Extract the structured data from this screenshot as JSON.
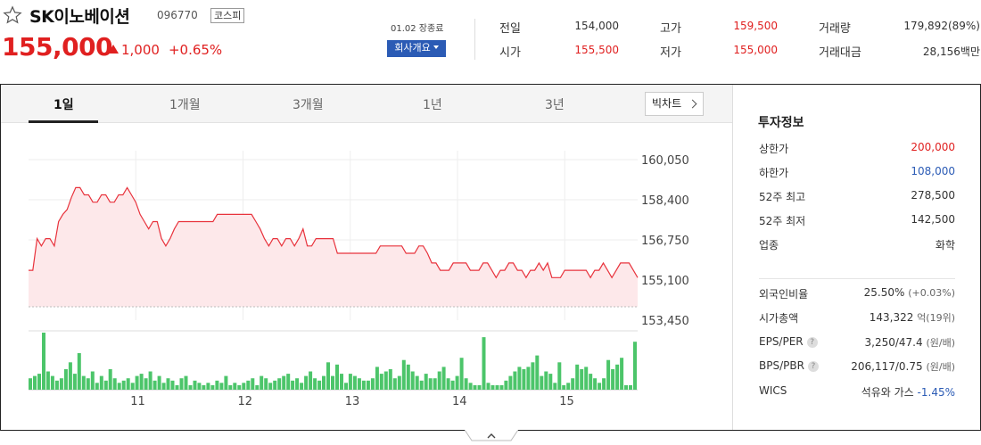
{
  "header": {
    "name": "SK이노베이션",
    "code": "096770",
    "market": "코스피",
    "price": "155,000",
    "change": "1,000",
    "change_pct": "+0.65%",
    "status": "01.02 장종료",
    "company_button": "회사개요"
  },
  "quotes": [
    {
      "label": "전일",
      "value": "154,000",
      "color": "#333333"
    },
    {
      "label": "시가",
      "value": "155,500",
      "color": "#e02020"
    },
    {
      "label": "고가",
      "value": "159,500",
      "color": "#e02020"
    },
    {
      "label": "저가",
      "value": "155,000",
      "color": "#e02020"
    },
    {
      "label": "거래량",
      "value": "179,892(89%)",
      "color": "#333333"
    },
    {
      "label": "거래대금",
      "value": "28,156백만",
      "color": "#333333"
    }
  ],
  "tabs": [
    "1일",
    "1개월",
    "3개월",
    "1년",
    "3년"
  ],
  "active_tab": "1일",
  "bigchart_label": "빅차트",
  "colors": {
    "up": "#e02020",
    "down": "#2b5bb5",
    "volume": "#4cc56a",
    "line": "#e8323c",
    "fill": "#fde8ea"
  },
  "chart_data": {
    "type": "line",
    "y_ticks": [
      "160,050",
      "158,400",
      "156,750",
      "155,100",
      "153,450"
    ],
    "ylim": [
      153450,
      160050
    ],
    "x_ticks": [
      "11",
      "12",
      "13",
      "14",
      "15"
    ],
    "base_price": 154000,
    "price_values": [
      155500,
      155500,
      156800,
      156500,
      156800,
      156800,
      156500,
      157500,
      157800,
      158000,
      158500,
      158900,
      158900,
      158600,
      158600,
      158300,
      158300,
      158600,
      158600,
      158300,
      158300,
      158600,
      158600,
      158900,
      158600,
      158300,
      157800,
      157500,
      157200,
      157500,
      157500,
      156800,
      156500,
      156800,
      157200,
      157500,
      157500,
      157500,
      157500,
      157500,
      157500,
      157500,
      157500,
      157500,
      157800,
      157800,
      157800,
      157800,
      157800,
      157800,
      157800,
      157800,
      157800,
      157500,
      157200,
      156800,
      156500,
      156800,
      156800,
      156500,
      156800,
      156800,
      156500,
      156800,
      157200,
      156500,
      156500,
      156800,
      156800,
      156800,
      156800,
      156800,
      156200,
      156200,
      156200,
      156200,
      156200,
      156200,
      156200,
      156200,
      156200,
      156200,
      156500,
      156500,
      156500,
      156500,
      156500,
      156500,
      156200,
      156200,
      156200,
      156500,
      156500,
      156200,
      155800,
      155800,
      155500,
      155500,
      155500,
      155800,
      155800,
      155800,
      155800,
      155500,
      155500,
      155500,
      155800,
      155800,
      155500,
      155200,
      155500,
      155500,
      155800,
      155800,
      155500,
      155500,
      155200,
      155500,
      155500,
      155800,
      155500,
      155800,
      155200,
      155200,
      155200,
      155500,
      155500,
      155500,
      155500,
      155500,
      155500,
      155200,
      155500,
      155500,
      155800,
      155500,
      155200,
      155500,
      155800,
      155800,
      155800,
      155500,
      155200
    ],
    "volume_values": [
      5,
      6,
      7,
      25,
      8,
      6,
      4,
      5,
      9,
      12,
      7,
      16,
      6,
      5,
      8,
      3,
      6,
      4,
      9,
      5,
      3,
      4,
      5,
      3,
      6,
      7,
      5,
      8,
      4,
      6,
      3,
      5,
      4,
      2,
      5,
      6,
      2,
      4,
      3,
      2,
      3,
      2,
      4,
      3,
      6,
      2,
      3,
      2,
      3,
      4,
      5,
      2,
      6,
      5,
      3,
      4,
      5,
      6,
      7,
      4,
      5,
      3,
      6,
      8,
      5,
      4,
      6,
      12,
      6,
      11,
      7,
      3,
      7,
      6,
      5,
      4,
      4,
      5,
      10,
      7,
      8,
      9,
      5,
      6,
      13,
      11,
      8,
      6,
      4,
      7,
      5,
      5,
      8,
      10,
      5,
      4,
      6,
      14,
      5,
      3,
      2,
      2,
      23,
      3,
      2,
      2,
      2,
      4,
      6,
      8,
      10,
      9,
      10,
      12,
      15,
      6,
      8,
      7,
      3,
      12,
      2,
      3,
      5,
      11,
      9,
      10,
      7,
      5,
      3,
      5,
      13,
      9,
      11,
      14,
      2,
      2,
      21
    ]
  },
  "info": {
    "title": "투자정보",
    "rows1": [
      {
        "label": "상한가",
        "value": "200,000",
        "color": "#e02020"
      },
      {
        "label": "하한가",
        "value": "108,000",
        "color": "#2b5bb5"
      },
      {
        "label": "52주 최고",
        "value": "278,500",
        "color": "#333333"
      },
      {
        "label": "52주 최저",
        "value": "142,500",
        "color": "#333333"
      },
      {
        "label": "업종",
        "value": "화학",
        "color": "#333333"
      }
    ],
    "foreign_label": "외국인비율",
    "foreign_value": "25.50%",
    "foreign_sub": "(+0.03%)",
    "mcap_label": "시가총액",
    "mcap_value": "143,322",
    "mcap_sub": "억(19위)",
    "eps_label": "EPS/PER",
    "eps_value": "3,250/47.4",
    "eps_sub": "(원/배)",
    "bps_label": "BPS/PBR",
    "bps_value": "206,117/0.75",
    "bps_sub": "(원/배)",
    "wics_label": "WICS",
    "wics_value": "석유와 가스",
    "wics_change": "-1.45%"
  }
}
